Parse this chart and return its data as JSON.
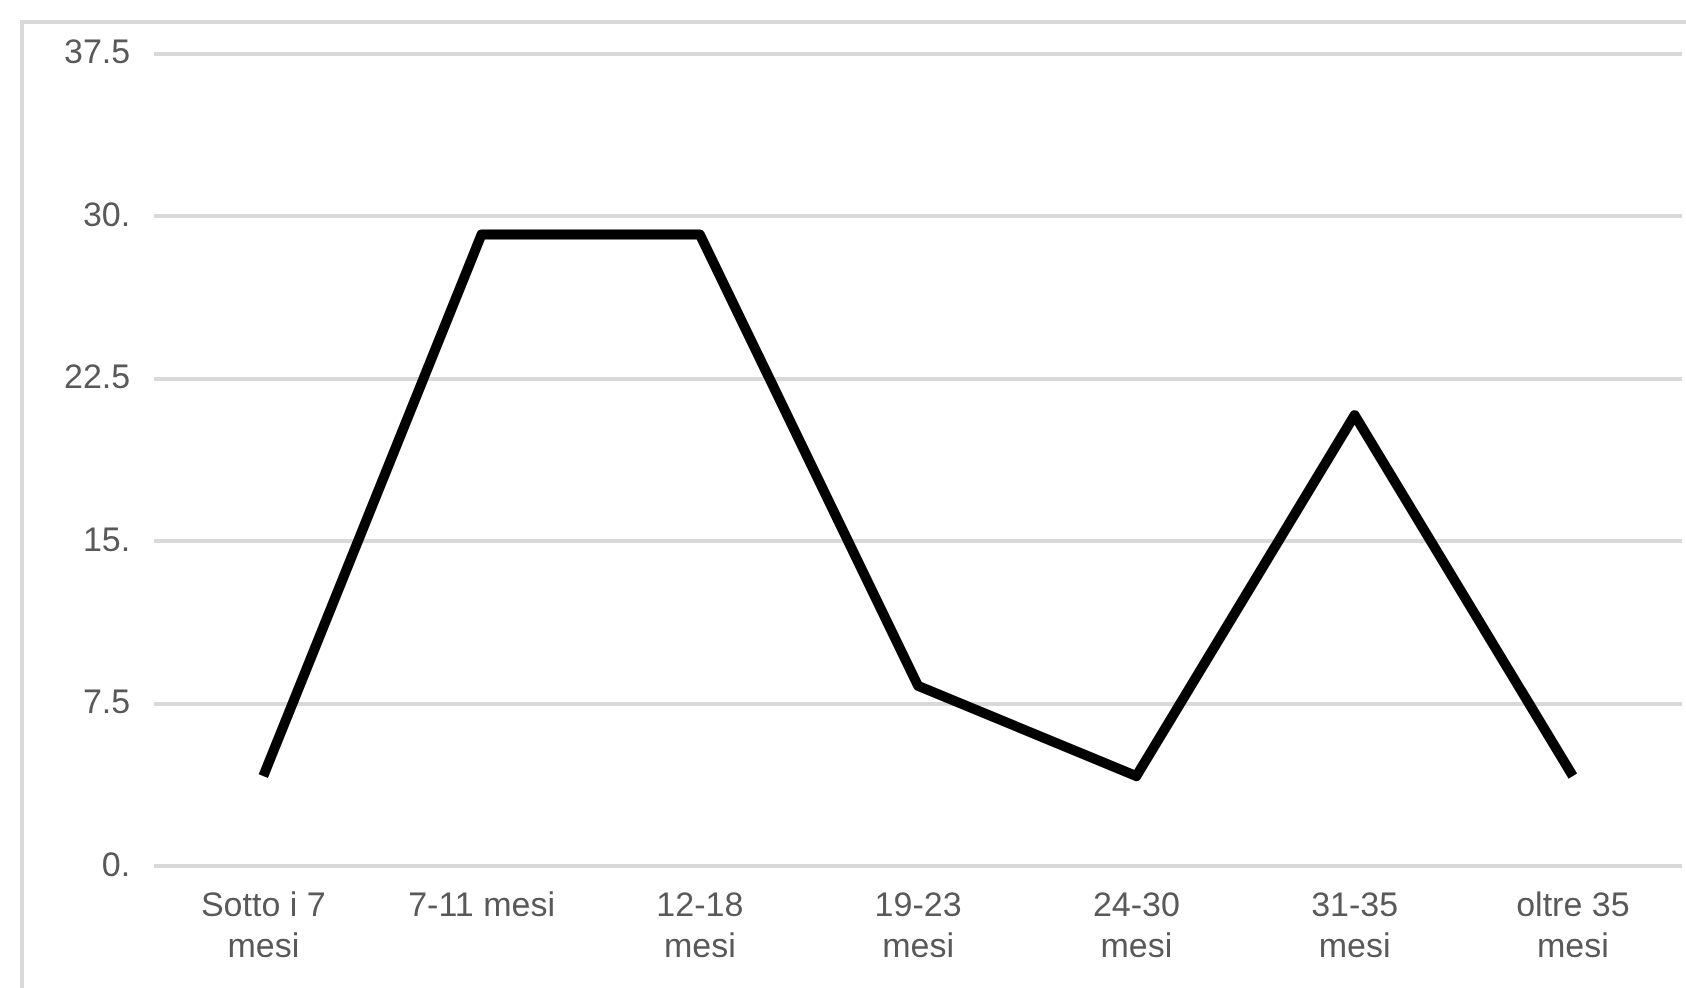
{
  "chart_data": {
    "type": "line",
    "categories": [
      "Sotto i 7 mesi",
      "7-11 mesi",
      "12-18 mesi",
      "19-23 mesi",
      "24-30 mesi",
      "31-35 mesi",
      "oltre 35 mesi"
    ],
    "series": [
      {
        "color": "#000000",
        "values": [
          4.17,
          29.17,
          29.17,
          8.33,
          4.17,
          20.83,
          4.17
        ]
      }
    ],
    "ylim": [
      0,
      37.5
    ],
    "yticks": [
      {
        "value": 0,
        "label": "0."
      },
      {
        "value": 7.5,
        "label": "7.5"
      },
      {
        "value": 15,
        "label": "15."
      },
      {
        "value": 22.5,
        "label": "22.5"
      },
      {
        "value": 30,
        "label": "30."
      },
      {
        "value": 37.5,
        "label": "37.5"
      }
    ],
    "grid": "y",
    "legend": false,
    "marker": "none",
    "line_style": "solid"
  }
}
